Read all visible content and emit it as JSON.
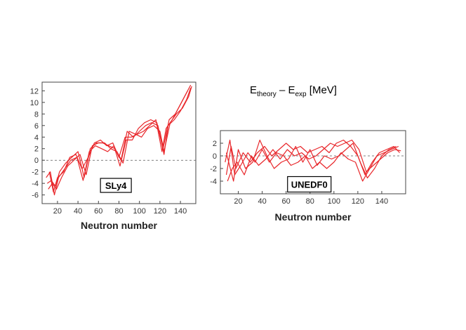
{
  "title": {
    "main": "E",
    "sub1": "theory",
    "mid": " – E",
    "sub2": "exp",
    "unit": " [MeV]"
  },
  "colors": {
    "curve": "#e8262a",
    "frame": "#444444",
    "zero_line": "#555555"
  },
  "chart_data": [
    {
      "type": "line",
      "name": "SLy4",
      "legend": "SLy4",
      "xlabel": "Neutron number",
      "ylabel": "",
      "xlim": [
        5,
        155
      ],
      "ylim": [
        -7.5,
        13.5
      ],
      "xticks": [
        20,
        40,
        60,
        80,
        100,
        120,
        140
      ],
      "yticks": [
        -6,
        -4,
        -2,
        0,
        2,
        4,
        6,
        8,
        10,
        12
      ],
      "series": [
        {
          "name": "s1",
          "x": [
            10,
            14,
            18,
            22,
            28,
            34,
            40,
            46,
            52,
            58,
            64,
            70,
            76,
            82,
            88,
            94,
            100,
            106,
            112,
            118,
            124,
            128,
            134,
            140,
            146,
            150
          ],
          "y": [
            -4,
            -3.5,
            -4.5,
            -2,
            -0.5,
            0.5,
            1.5,
            -3,
            2,
            3,
            3,
            2.5,
            2,
            0,
            5,
            4,
            5,
            6,
            6.5,
            6,
            1,
            6,
            7,
            8.5,
            10.5,
            12.5
          ]
        },
        {
          "name": "s2",
          "x": [
            11,
            15,
            19,
            24,
            30,
            36,
            42,
            48,
            54,
            60,
            66,
            72,
            78,
            84,
            90,
            96,
            102,
            108,
            114,
            120,
            124,
            130,
            136,
            142,
            148,
            151
          ],
          "y": [
            -5,
            -4,
            -5,
            -3,
            -1,
            0,
            1,
            -2.5,
            2.5,
            3,
            3,
            2,
            1.5,
            -0.5,
            5,
            4.5,
            4,
            5.5,
            6,
            5,
            1.5,
            6.5,
            8,
            9,
            11,
            12.8
          ]
        },
        {
          "name": "s3",
          "x": [
            9,
            13,
            17,
            21,
            27,
            33,
            39,
            45,
            51,
            57,
            63,
            69,
            75,
            81,
            87,
            93,
            99,
            105,
            111,
            117,
            123,
            129,
            135,
            141,
            147
          ],
          "y": [
            -3,
            -2,
            -6,
            -3,
            -1.5,
            0,
            0.5,
            -3.5,
            1.5,
            2.5,
            2,
            1.5,
            2.5,
            -1,
            3.5,
            3.5,
            5.5,
            6.5,
            7,
            6.5,
            2,
            7,
            8,
            10,
            12
          ]
        },
        {
          "name": "s4",
          "x": [
            12,
            16,
            20,
            26,
            32,
            38,
            44,
            50,
            56,
            62,
            68,
            74,
            80,
            86,
            92,
            98,
            104,
            110,
            116,
            122,
            126,
            132,
            138,
            144,
            150
          ],
          "y": [
            -2,
            -5.5,
            -3,
            -2,
            0.5,
            1,
            -1.5,
            0.5,
            3,
            3.5,
            2.5,
            3,
            0.5,
            4,
            4,
            4.5,
            5,
            6,
            7,
            1.5,
            5.5,
            7,
            9,
            11,
            13
          ]
        }
      ]
    },
    {
      "type": "line",
      "name": "UNEDF0",
      "legend": "UNEDF0",
      "xlabel": "Neutron number",
      "ylabel": "",
      "xlim": [
        5,
        160
      ],
      "ylim": [
        -6,
        4
      ],
      "xticks": [
        20,
        40,
        60,
        80,
        100,
        120,
        140
      ],
      "yticks": [
        -4,
        -2,
        0,
        2
      ],
      "series": [
        {
          "name": "u1",
          "x": [
            10,
            14,
            18,
            24,
            30,
            36,
            42,
            48,
            54,
            60,
            66,
            72,
            78,
            84,
            90,
            96,
            102,
            108,
            114,
            120,
            126,
            132,
            138,
            144,
            150,
            155
          ],
          "y": [
            -3,
            1.5,
            -2,
            0.5,
            -1,
            0.5,
            1.5,
            0,
            1,
            2,
            1,
            1.5,
            0.5,
            1,
            1.5,
            0.5,
            2,
            2.5,
            1.5,
            0,
            -3,
            -1,
            0.5,
            1,
            1.5,
            0.5
          ]
        },
        {
          "name": "u2",
          "x": [
            9,
            13,
            17,
            22,
            28,
            34,
            40,
            46,
            52,
            58,
            64,
            70,
            76,
            82,
            88,
            94,
            100,
            106,
            112,
            118,
            124,
            130,
            136,
            142,
            148,
            154
          ],
          "y": [
            -1,
            2.5,
            -3,
            -1.5,
            0.5,
            -1,
            1,
            -1,
            0.5,
            0,
            -1.5,
            -1,
            0,
            -2,
            -1,
            -2,
            -1,
            0.5,
            -0.5,
            -1,
            -4,
            -2,
            0,
            0.5,
            1,
            1.5
          ]
        },
        {
          "name": "u3",
          "x": [
            11,
            15,
            19,
            25,
            31,
            37,
            43,
            49,
            55,
            61,
            67,
            73,
            79,
            85,
            91,
            97,
            103,
            109,
            115,
            121,
            127,
            133,
            139,
            145,
            151,
            156
          ],
          "y": [
            -4,
            -2,
            -1,
            -3,
            0,
            -1.5,
            -0.5,
            1,
            -0.5,
            1,
            0,
            0.5,
            -0.5,
            0,
            1,
            2,
            1.5,
            2,
            2.5,
            1,
            -2.5,
            -1.5,
            -0.5,
            0.5,
            1,
            0.8
          ]
        },
        {
          "name": "u4",
          "x": [
            10,
            16,
            20,
            26,
            32,
            38,
            44,
            50,
            56,
            62,
            68,
            74,
            80,
            86,
            92,
            98,
            104,
            110,
            116,
            122,
            128,
            134,
            140,
            146,
            152
          ],
          "y": [
            0.5,
            -4,
            1,
            -2,
            -1,
            2.5,
            0,
            -2,
            -1,
            -0.5,
            1.5,
            -1,
            1,
            -1.5,
            0,
            -0.5,
            0,
            1,
            2,
            -1,
            -3.5,
            -2,
            0,
            1,
            1.5
          ]
        }
      ]
    }
  ]
}
